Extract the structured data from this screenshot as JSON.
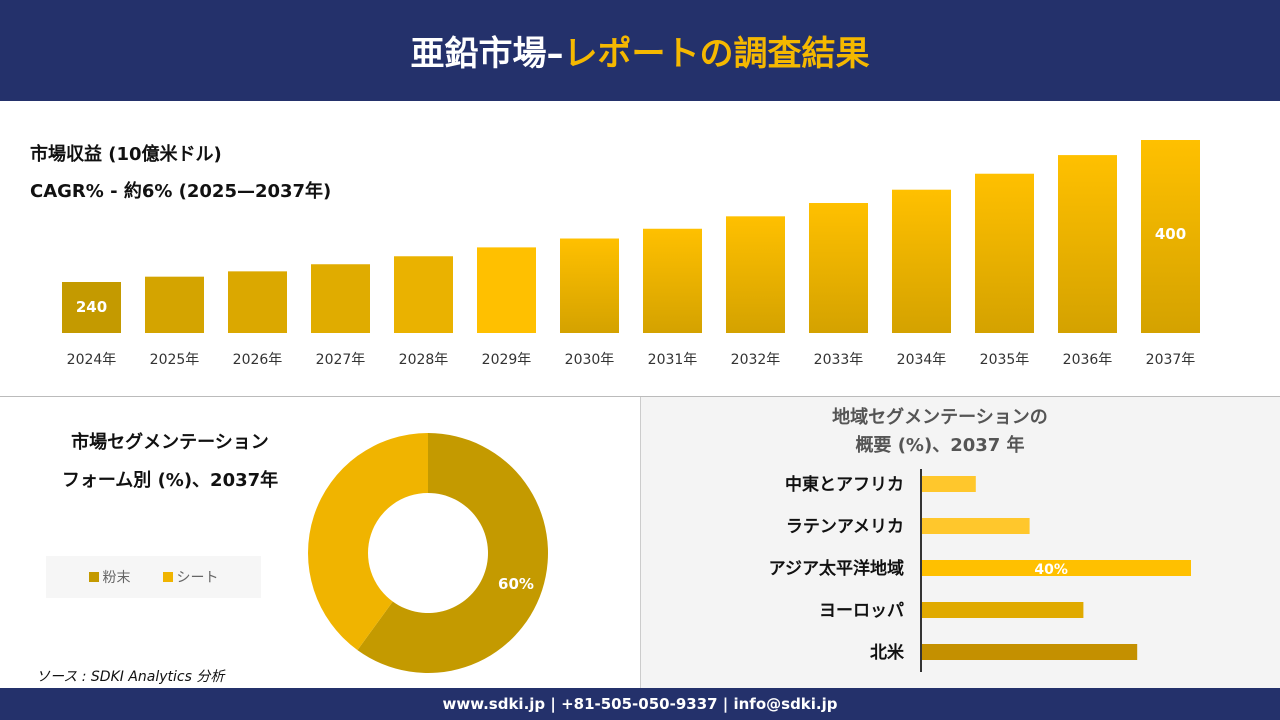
{
  "header": {
    "title_white": "亜鉛市場–",
    "title_yellow": "レポートの調査結果"
  },
  "revenue": {
    "title": "市場収益 (10億米ドル)",
    "cagr": "CAGR% - 約6% (2025—2037年)"
  },
  "form_segment": {
    "title_line1": "市場セグメンテーション",
    "title_line2": "フォーム別 (%)、2037年"
  },
  "region_segment": {
    "title_line1": "地域セグメンテーションの",
    "title_line2": "概要 (%)、2037 年"
  },
  "source": "ソース : SDKI Analytics 分析",
  "footer": "www.sdki.jp | +81-505-050-9337 | info@sdki.jp",
  "colors": {
    "navy": "#24316b",
    "accent": "#f5b800",
    "powder": "#c49a00",
    "sheet": "#f0b400"
  },
  "chart_data": [
    {
      "type": "bar",
      "title": "市場収益 (10億米ドル)",
      "categories": [
        "2024年",
        "2025年",
        "2026年",
        "2027年",
        "2028年",
        "2029年",
        "2030年",
        "2031年",
        "2032年",
        "2033年",
        "2034年",
        "2035年",
        "2036年",
        "2037年"
      ],
      "values": [
        240,
        246,
        252,
        260,
        269,
        279,
        289,
        300,
        314,
        329,
        344,
        362,
        383,
        400
      ],
      "data_labels": {
        "0": "240",
        "13": "400"
      }
    },
    {
      "type": "pie",
      "subtype": "donut",
      "legend": [
        "粉末",
        "シート"
      ],
      "values": [
        60,
        40
      ],
      "data_labels": [
        "60%",
        ""
      ],
      "legend_placement": "left"
    },
    {
      "type": "bar",
      "orientation": "horizontal",
      "categories": [
        "中東とアフリカ",
        "ラテンアメリカ",
        "アジア太平洋地域",
        "ヨーロッパ",
        "北米"
      ],
      "values": [
        8,
        16,
        40,
        24,
        32
      ],
      "data_labels": {
        "2": "40%"
      }
    }
  ]
}
